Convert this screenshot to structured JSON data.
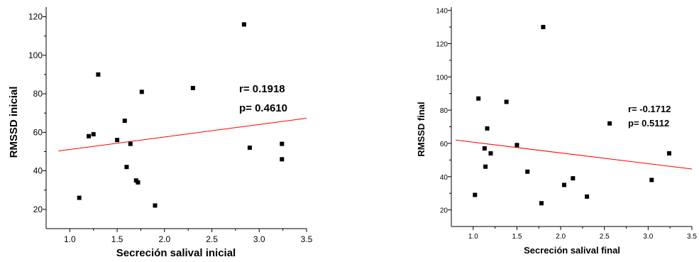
{
  "chart_data": [
    {
      "type": "scatter",
      "xlabel": "Secreción salival inicial",
      "ylabel": "RMSSD inicial",
      "xlim": [
        0.75,
        3.5
      ],
      "ylim": [
        10,
        125
      ],
      "xticks": [
        "1.0",
        "1.5",
        "2.0",
        "2.5",
        "3.0",
        "3.5"
      ],
      "yticks": [
        "20",
        "40",
        "60",
        "80",
        "100",
        "120"
      ],
      "points": [
        {
          "x": 1.1,
          "y": 26
        },
        {
          "x": 1.2,
          "y": 58
        },
        {
          "x": 1.25,
          "y": 59
        },
        {
          "x": 1.3,
          "y": 90
        },
        {
          "x": 1.5,
          "y": 56
        },
        {
          "x": 1.58,
          "y": 66
        },
        {
          "x": 1.6,
          "y": 42
        },
        {
          "x": 1.64,
          "y": 54
        },
        {
          "x": 1.7,
          "y": 35
        },
        {
          "x": 1.72,
          "y": 34
        },
        {
          "x": 1.76,
          "y": 81
        },
        {
          "x": 1.9,
          "y": 22
        },
        {
          "x": 2.3,
          "y": 83
        },
        {
          "x": 2.84,
          "y": 116
        },
        {
          "x": 2.9,
          "y": 52
        },
        {
          "x": 3.24,
          "y": 54
        },
        {
          "x": 3.24,
          "y": 46
        }
      ],
      "fit_line": {
        "x": [
          0.88,
          3.5
        ],
        "y": [
          50.3,
          67.3
        ],
        "color": "#ff0000"
      },
      "annotations": [
        "r= 0.1918",
        "p= 0.4610"
      ],
      "grid": false
    },
    {
      "type": "scatter",
      "xlabel": "Secreción salival final",
      "ylabel": "RMSSD final",
      "xlim": [
        0.75,
        3.5
      ],
      "ylim": [
        10,
        142
      ],
      "xticks": [
        "1.0",
        "1.5",
        "2.0",
        "2.5",
        "3.0",
        "3.5"
      ],
      "yticks": [
        "20",
        "40",
        "60",
        "80",
        "100",
        "120",
        "140"
      ],
      "points": [
        {
          "x": 1.02,
          "y": 29
        },
        {
          "x": 1.06,
          "y": 87
        },
        {
          "x": 1.13,
          "y": 57
        },
        {
          "x": 1.14,
          "y": 46
        },
        {
          "x": 1.16,
          "y": 69
        },
        {
          "x": 1.2,
          "y": 54
        },
        {
          "x": 1.38,
          "y": 85
        },
        {
          "x": 1.5,
          "y": 59
        },
        {
          "x": 1.62,
          "y": 43
        },
        {
          "x": 1.78,
          "y": 24
        },
        {
          "x": 1.8,
          "y": 130
        },
        {
          "x": 2.04,
          "y": 35
        },
        {
          "x": 2.14,
          "y": 39
        },
        {
          "x": 2.3,
          "y": 28
        },
        {
          "x": 2.56,
          "y": 72
        },
        {
          "x": 3.04,
          "y": 38
        },
        {
          "x": 3.24,
          "y": 54
        }
      ],
      "fit_line": {
        "x": [
          0.8,
          3.5
        ],
        "y": [
          62.0,
          44.6
        ],
        "color": "#ff0000"
      },
      "annotations": [
        "r= -0.1712",
        "p= 0.5112"
      ],
      "grid": false
    }
  ]
}
